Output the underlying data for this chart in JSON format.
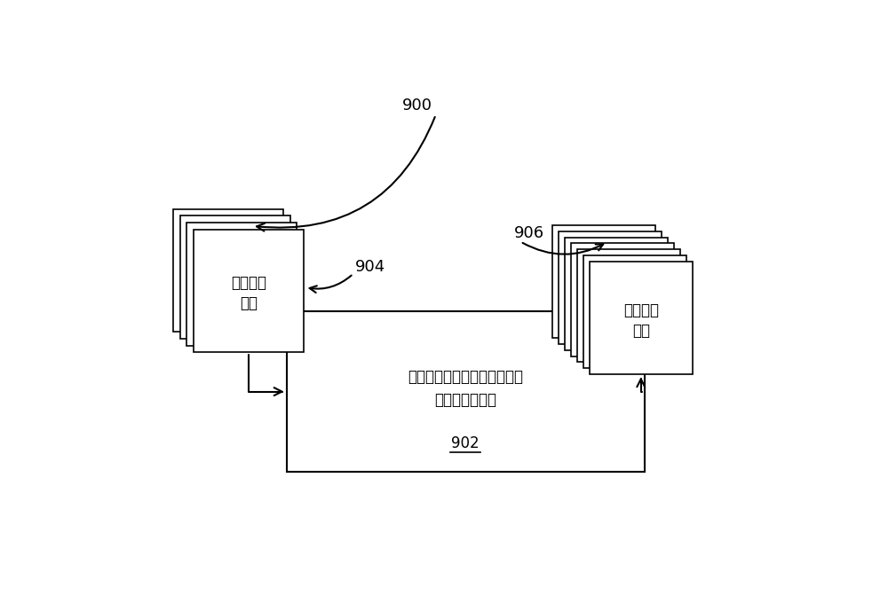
{
  "bg_color": "#ffffff",
  "label_900": "900",
  "label_904": "904",
  "label_906": "906",
  "label_902": "902",
  "box_902_text_line1": "基于深度学习的可训练非线性",
  "box_902_text_line2": "反应扩散滤波器",
  "input_label_line1": "输入训练",
  "input_label_line2": "图像",
  "output_label_line1": "输出训练",
  "output_label_line2": "图像",
  "stack_input_count": 4,
  "stack_output_count": 7,
  "line_color": "#000000",
  "fill_color": "#ffffff"
}
